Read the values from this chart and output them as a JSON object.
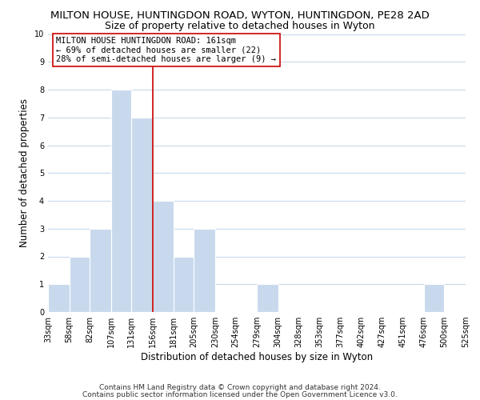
{
  "title": "MILTON HOUSE, HUNTINGDON ROAD, WYTON, HUNTINGDON, PE28 2AD",
  "subtitle": "Size of property relative to detached houses in Wyton",
  "xlabel": "Distribution of detached houses by size in Wyton",
  "ylabel": "Number of detached properties",
  "bin_edges": [
    33,
    58,
    82,
    107,
    131,
    156,
    181,
    205,
    230,
    254,
    279,
    304,
    328,
    353,
    377,
    402,
    427,
    451,
    476,
    500,
    525
  ],
  "bin_labels": [
    "33sqm",
    "58sqm",
    "82sqm",
    "107sqm",
    "131sqm",
    "156sqm",
    "181sqm",
    "205sqm",
    "230sqm",
    "254sqm",
    "279sqm",
    "304sqm",
    "328sqm",
    "353sqm",
    "377sqm",
    "402sqm",
    "427sqm",
    "451sqm",
    "476sqm",
    "500sqm",
    "525sqm"
  ],
  "counts": [
    1,
    2,
    3,
    8,
    7,
    4,
    2,
    3,
    0,
    0,
    1,
    0,
    0,
    0,
    0,
    0,
    0,
    0,
    1,
    0
  ],
  "bar_color": "#c8d9ed",
  "bar_edge_color": "#ffffff",
  "reference_line_x": 156,
  "reference_line_color": "#cc0000",
  "annotation_line1": "MILTON HOUSE HUNTINGDON ROAD: 161sqm",
  "annotation_line2": "← 69% of detached houses are smaller (22)",
  "annotation_line3": "28% of semi-detached houses are larger (9) →",
  "ylim": [
    0,
    10
  ],
  "yticks": [
    0,
    1,
    2,
    3,
    4,
    5,
    6,
    7,
    8,
    9,
    10
  ],
  "footer_line1": "Contains HM Land Registry data © Crown copyright and database right 2024.",
  "footer_line2": "Contains public sector information licensed under the Open Government Licence v3.0.",
  "background_color": "#ffffff",
  "grid_color": "#c8d8ec",
  "title_fontsize": 9.5,
  "subtitle_fontsize": 9,
  "axis_label_fontsize": 8.5,
  "tick_fontsize": 7,
  "annotation_fontsize": 7.5,
  "footer_fontsize": 6.5
}
